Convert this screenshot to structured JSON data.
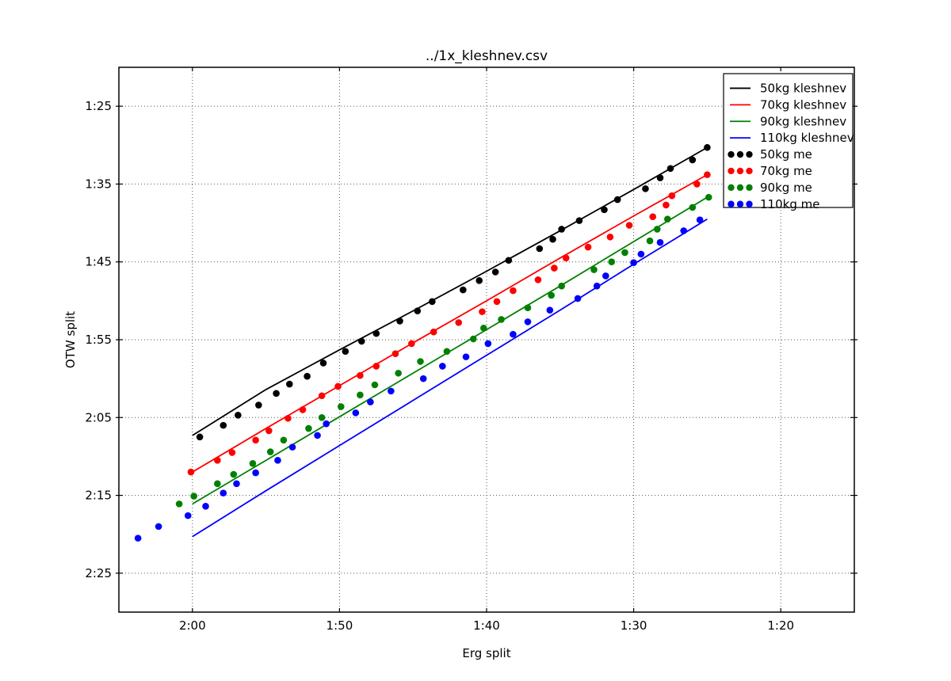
{
  "figure": {
    "title": "../1x_kleshnev.csv",
    "xlabel": "Erg split",
    "ylabel": "OTW split"
  },
  "colors": {
    "black": "#000000",
    "red": "#ff0000",
    "green": "#008000",
    "blue": "#0000ff",
    "grid": "#555555",
    "spine": "#000000",
    "background": "#ffffff"
  },
  "chart_data": {
    "type": "line+scatter",
    "title": "../1x_kleshnev.csv",
    "xlabel": "Erg split",
    "ylabel": "OTW split",
    "grid": "dotted",
    "legend_position": "upper right",
    "x_axis": {
      "unit": "seconds per 500m (displayed m:ss)",
      "range": [
        125,
        75
      ],
      "reversed": true,
      "tick_values": [
        120,
        110,
        100,
        90,
        80
      ],
      "tick_labels": [
        "2:00",
        "1:50",
        "1:40",
        "1:30",
        "1:20"
      ]
    },
    "y_axis": {
      "unit": "seconds per 500m (displayed m:ss)",
      "range": [
        80,
        150
      ],
      "increases_downward": true,
      "tick_values": [
        85,
        95,
        105,
        115,
        125,
        135,
        145
      ],
      "tick_labels": [
        "1:25",
        "1:35",
        "1:45",
        "1:55",
        "2:05",
        "2:15",
        "2:25"
      ]
    },
    "series": [
      {
        "name": "50kg kleshnev",
        "type": "line",
        "color": "#000000",
        "x": [
          120,
          115,
          110,
          105,
          100,
          95,
          90,
          85
        ],
        "y": [
          127.3,
          121.4,
          116.3,
          111.3,
          106.2,
          101.0,
          95.7,
          90.3
        ]
      },
      {
        "name": "70kg kleshnev",
        "type": "line",
        "color": "#ff0000",
        "x": [
          120,
          115,
          110,
          105,
          100,
          95,
          90,
          85
        ],
        "y": [
          132.0,
          126.4,
          120.9,
          115.4,
          110.0,
          104.5,
          99.1,
          93.8
        ]
      },
      {
        "name": "90kg kleshnev",
        "type": "line",
        "color": "#008000",
        "x": [
          120,
          115,
          110,
          105,
          100,
          95,
          90,
          85
        ],
        "y": [
          136.1,
          130.5,
          124.9,
          119.3,
          113.7,
          108.1,
          102.4,
          96.7
        ]
      },
      {
        "name": "110kg kleshnev",
        "type": "line",
        "color": "#0000ff",
        "x": [
          120,
          115,
          110,
          105,
          100,
          95,
          90,
          85
        ],
        "y": [
          140.3,
          134.4,
          128.6,
          122.8,
          117.0,
          111.2,
          105.3,
          99.5
        ]
      },
      {
        "name": "50kg me",
        "type": "scatter",
        "color": "#000000",
        "x": [
          119.5,
          117.9,
          116.9,
          115.5,
          114.3,
          113.4,
          112.2,
          111.1,
          109.6,
          108.5,
          107.5,
          105.9,
          104.7,
          103.7,
          101.6,
          100.5,
          99.4,
          98.5,
          96.4,
          95.5,
          94.9,
          93.7,
          92.0,
          91.1,
          89.2,
          88.2,
          87.5,
          86.0,
          85.0
        ],
        "y": [
          127.5,
          126.0,
          124.7,
          123.4,
          121.9,
          120.7,
          119.7,
          118.0,
          116.5,
          115.2,
          114.2,
          112.6,
          111.3,
          110.1,
          108.6,
          107.4,
          106.3,
          104.8,
          103.3,
          102.1,
          100.8,
          99.7,
          98.3,
          97.0,
          95.6,
          94.2,
          93.0,
          91.9,
          90.3
        ]
      },
      {
        "name": "70kg me",
        "type": "scatter",
        "color": "#ff0000",
        "x": [
          120.1,
          118.3,
          117.3,
          115.7,
          114.8,
          113.5,
          112.5,
          111.2,
          110.1,
          108.6,
          107.5,
          106.2,
          105.1,
          103.6,
          101.9,
          100.3,
          99.3,
          98.2,
          96.5,
          95.4,
          94.6,
          93.1,
          91.6,
          90.3,
          88.7,
          87.8,
          87.4,
          85.7,
          85.0
        ],
        "y": [
          132.0,
          130.5,
          129.5,
          127.9,
          126.7,
          125.1,
          124.0,
          122.2,
          121.0,
          119.6,
          118.4,
          116.8,
          115.5,
          114.0,
          112.8,
          111.4,
          110.1,
          108.7,
          107.3,
          105.8,
          104.5,
          103.1,
          101.8,
          100.3,
          99.2,
          97.7,
          96.5,
          95.0,
          93.8
        ]
      },
      {
        "name": "90kg me",
        "type": "scatter",
        "color": "#008000",
        "x": [
          120.9,
          119.9,
          118.3,
          117.2,
          115.9,
          114.7,
          113.8,
          112.1,
          111.2,
          109.9,
          108.6,
          107.6,
          106.0,
          104.5,
          102.7,
          100.9,
          100.2,
          99.0,
          97.2,
          95.6,
          94.9,
          92.7,
          91.5,
          90.6,
          88.9,
          88.4,
          87.7,
          86.0,
          84.9
        ],
        "y": [
          136.1,
          135.1,
          133.5,
          132.3,
          130.9,
          129.4,
          127.9,
          126.4,
          125.0,
          123.6,
          122.1,
          120.8,
          119.3,
          117.8,
          116.5,
          114.9,
          113.5,
          112.4,
          110.9,
          109.3,
          108.1,
          106.0,
          105.0,
          103.8,
          102.3,
          100.8,
          99.5,
          98.0,
          96.7
        ]
      },
      {
        "name": "110kg me",
        "type": "scatter",
        "color": "#0000ff",
        "x": [
          123.7,
          122.3,
          120.3,
          119.1,
          117.9,
          117.0,
          115.7,
          114.2,
          113.2,
          111.5,
          110.9,
          108.9,
          107.9,
          106.5,
          104.3,
          103.0,
          101.4,
          99.9,
          98.2,
          97.2,
          95.7,
          93.8,
          92.5,
          91.9,
          90.0,
          89.5,
          88.2,
          86.6,
          85.5
        ],
        "y": [
          140.5,
          139.0,
          137.6,
          136.4,
          134.7,
          133.5,
          132.1,
          130.5,
          128.8,
          127.3,
          125.8,
          124.4,
          123.0,
          121.6,
          120.0,
          118.4,
          117.2,
          115.5,
          114.3,
          112.7,
          111.2,
          109.7,
          108.1,
          106.8,
          105.1,
          104.0,
          102.5,
          101.0,
          99.6
        ]
      }
    ],
    "legend_entries": [
      "50kg kleshnev",
      "70kg kleshnev",
      "90kg kleshnev",
      "110kg kleshnev",
      "50kg me",
      "70kg me",
      "90kg me",
      "110kg me"
    ]
  }
}
